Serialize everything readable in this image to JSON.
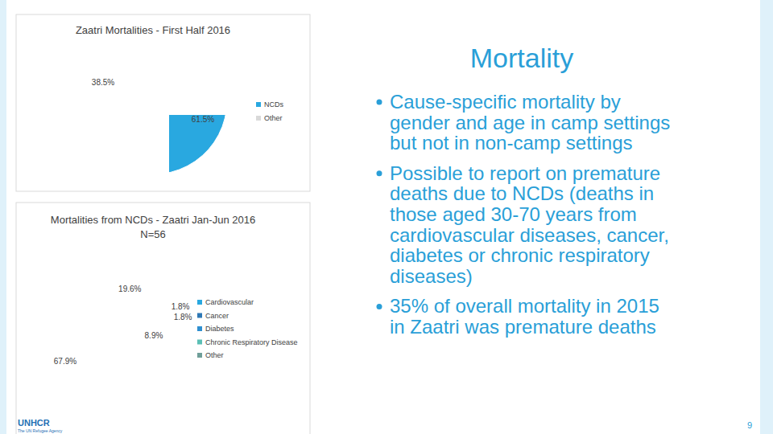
{
  "chart_data": [
    {
      "type": "pie",
      "title": "Zaatri Mortalities - First Half 2016",
      "categories": [
        "NCDs",
        "Other"
      ],
      "values": [
        61.5,
        38.5
      ],
      "value_labels": [
        "61.5%",
        "38.5%"
      ],
      "colors": [
        "#29a8e0",
        "#d9d9d9"
      ],
      "data_labels": true,
      "legend": "right"
    },
    {
      "type": "pie",
      "title": "Mortalities from NCDs - Zaatri Jan-Jun 2016",
      "subtitle": "N=56",
      "categories": [
        "Cardiovascular",
        "Cancer",
        "Diabetes",
        "Chronic Respiratory Disease",
        "Other"
      ],
      "values": [
        67.9,
        19.6,
        1.8,
        1.8,
        8.9
      ],
      "value_labels": [
        "67.9%",
        "19.6%",
        "1.8%",
        "1.8%",
        "8.9%"
      ],
      "colors": [
        "#29a8e0",
        "#2e78b5",
        "#2f8fd0",
        "#5bbfb5",
        "#6f9e99"
      ],
      "data_labels": true,
      "legend": "right"
    }
  ],
  "slide": {
    "title": "Mortality",
    "bullets": [
      [
        "Cause-specific mortality by",
        "gender and age in camp settings",
        "but not in non-camp settings"
      ],
      [
        "Possible to report on premature",
        "deaths due to NCDs (deaths in",
        "those aged 30-70 years from",
        "cardiovascular diseases, cancer,",
        "diabetes or chronic respiratory",
        "diseases)"
      ],
      [
        "35% of overall mortality in 2015",
        "in Zaatri was premature deaths"
      ]
    ],
    "logo": "UNHCR",
    "logo_subtitle": "The UN Refugee Agency",
    "page_number": 9
  }
}
